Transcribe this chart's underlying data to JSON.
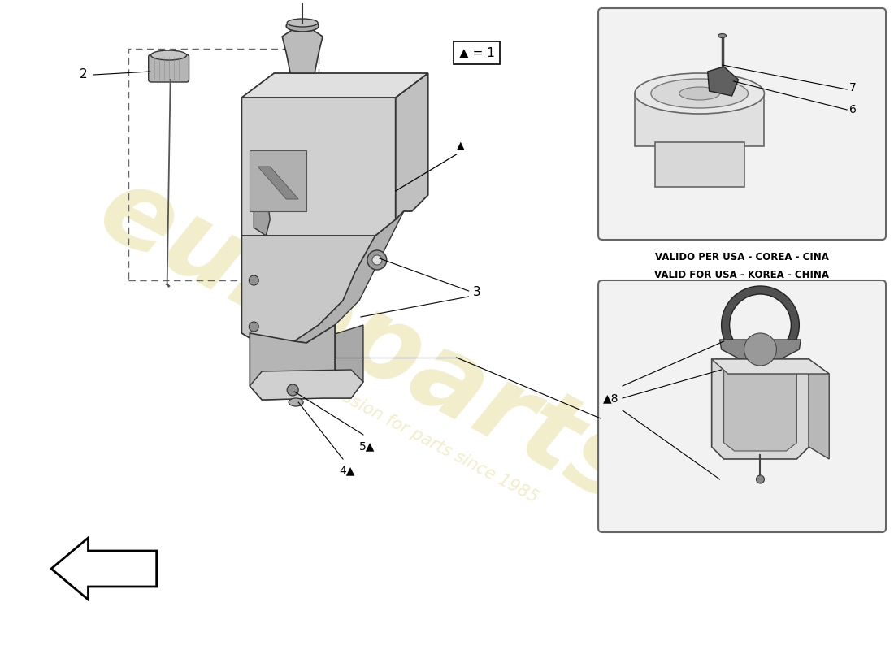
{
  "background_color": "#ffffff",
  "watermark_color": "#e8dfa0",
  "watermark_alpha": 0.55,
  "callout_symbol": "▲ = 1",
  "label_2": "2",
  "label_3": "3",
  "label_4": "4▲",
  "label_5": "5▲",
  "label_6": "6",
  "label_7": "7",
  "label_8": "▲8",
  "valid_line1": "VALIDO PER USA - COREA - CINA",
  "valid_line2": "VALID FOR USA - KOREA - CHINA",
  "tank_color": "#c8c8c8",
  "tank_edge": "#333333",
  "tank_dark": "#a0a0a0",
  "box_bg": "#f2f2f2",
  "box_edge": "#666666"
}
